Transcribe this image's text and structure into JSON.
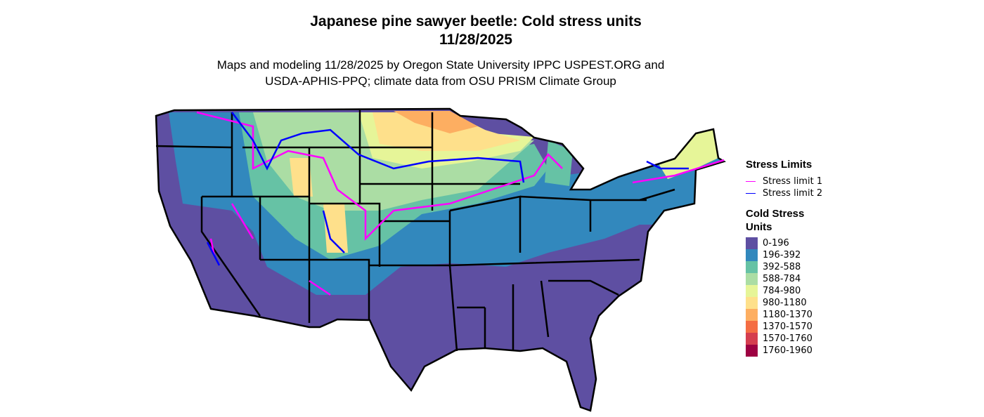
{
  "title_line1": "Japanese pine sawyer beetle: Cold stress units",
  "title_line2": "11/28/2025",
  "subtitle_line1": "Maps and modeling 11/28/2025 by Oregon State University IPPC USPEST.ORG and",
  "subtitle_line2": "USDA-APHIS-PPQ; climate data from OSU PRISM Climate Group",
  "legend": {
    "limits_title": "Stress Limits",
    "limits": [
      {
        "label": "Stress limit 1",
        "color": "#FF00FF"
      },
      {
        "label": "Stress limit 2",
        "color": "#0000FF"
      }
    ],
    "units_title_line1": "Cold Stress",
    "units_title_line2": "Units",
    "bins": [
      {
        "label": "0-196",
        "color": "#5E4FA2"
      },
      {
        "label": "196-392",
        "color": "#3288BD"
      },
      {
        "label": "392-588",
        "color": "#66C2A5"
      },
      {
        "label": "588-784",
        "color": "#ABDDA4"
      },
      {
        "label": "784-980",
        "color": "#E6F598"
      },
      {
        "label": "980-1180",
        "color": "#FEE08B"
      },
      {
        "label": "1180-1370",
        "color": "#FDAE61"
      },
      {
        "label": "1370-1570",
        "color": "#F46D43"
      },
      {
        "label": "1570-1760",
        "color": "#D53E4F"
      },
      {
        "label": "1760-1960",
        "color": "#9E0142"
      }
    ]
  }
}
